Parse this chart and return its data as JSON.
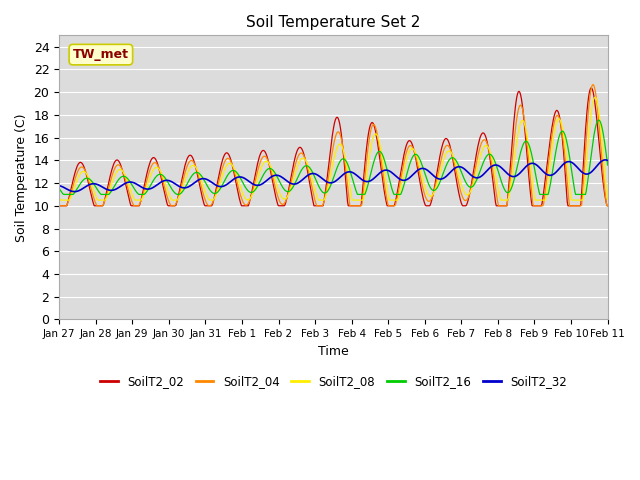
{
  "title": "Soil Temperature Set 2",
  "xlabel": "Time",
  "ylabel": "Soil Temperature (C)",
  "ylim": [
    0,
    25
  ],
  "yticks": [
    0,
    2,
    4,
    6,
    8,
    10,
    12,
    14,
    16,
    18,
    20,
    22,
    24
  ],
  "background_color": "#dcdcdc",
  "annotation_text": "TW_met",
  "annotation_color": "#8B0000",
  "annotation_bg": "#ffffcc",
  "annotation_border": "#cccc00",
  "series_colors": {
    "SoilT2_02": "#cc0000",
    "SoilT2_04": "#ff8800",
    "SoilT2_08": "#ffee00",
    "SoilT2_16": "#00cc00",
    "SoilT2_32": "#0000cc"
  },
  "x_tick_labels": [
    "Jan 27",
    "Jan 28",
    "Jan 29",
    "Jan 30",
    "Jan 31",
    "Feb 1",
    "Feb 2",
    "Feb 3",
    "Feb 4",
    "Feb 5",
    "Feb 6",
    "Feb 7",
    "Feb 8",
    "Feb 9",
    "Feb 10",
    "Feb 11"
  ],
  "num_points": 720,
  "duration_days": 15
}
